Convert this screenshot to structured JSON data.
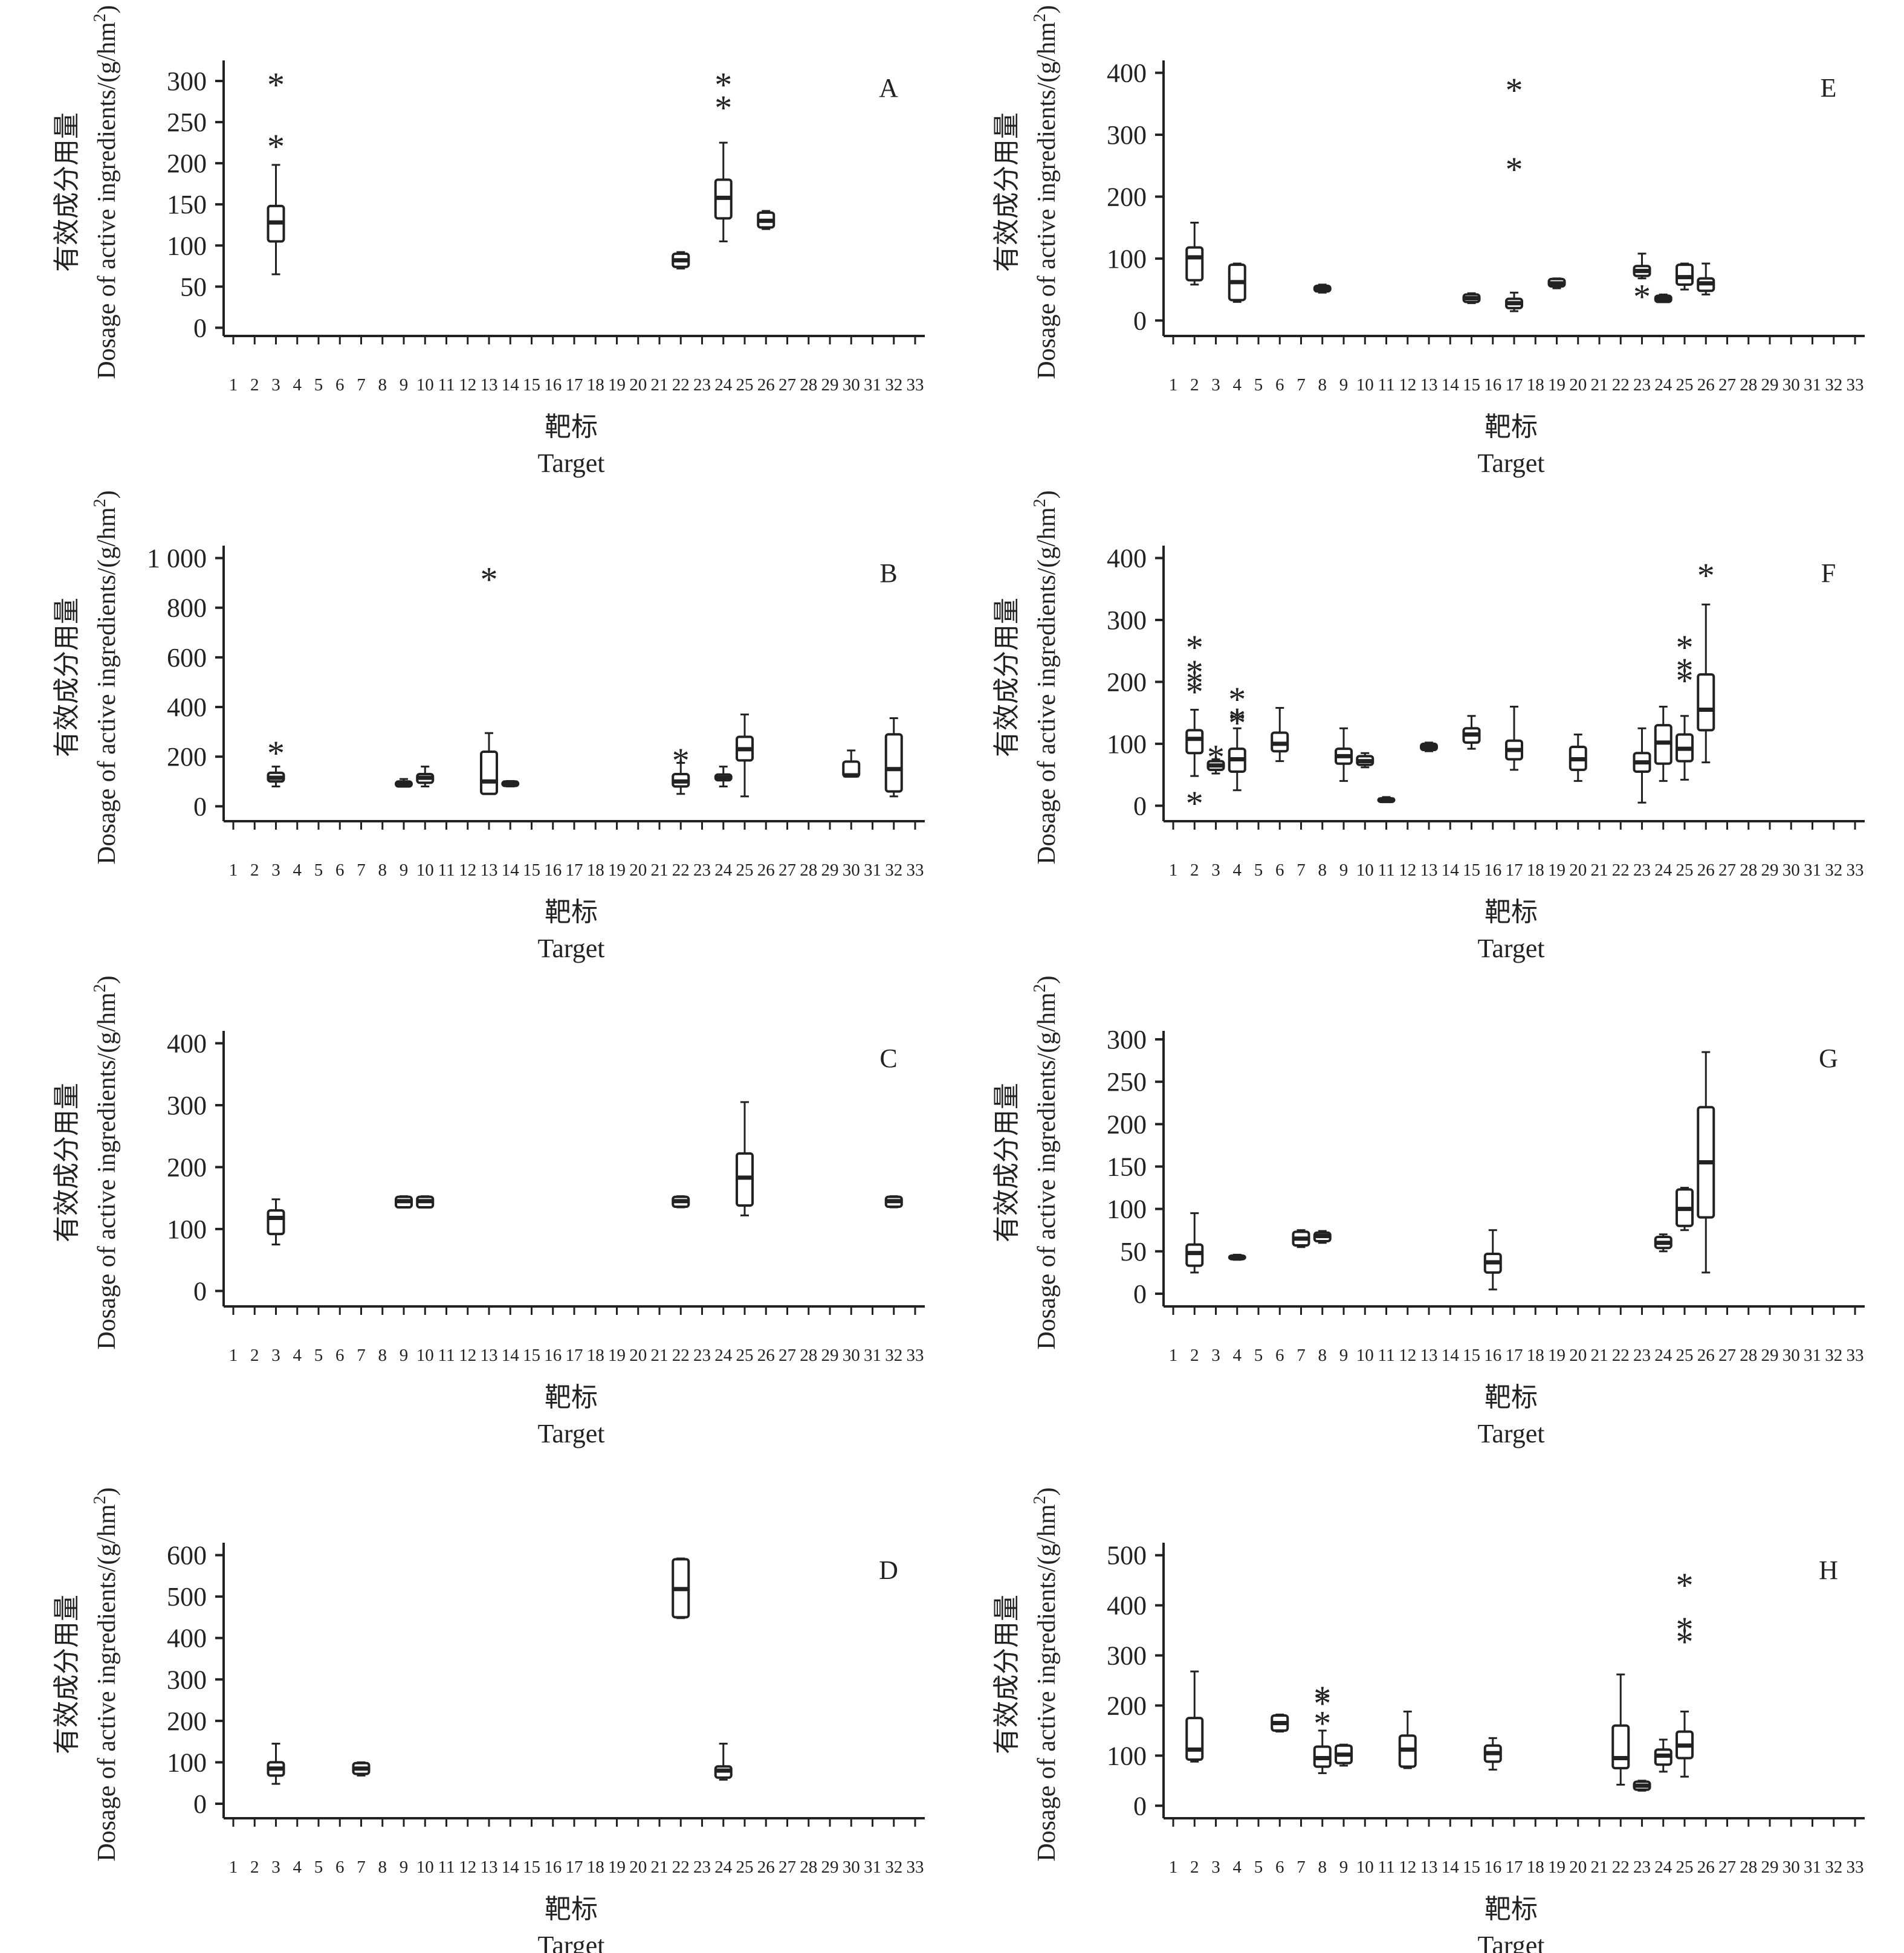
{
  "figure": {
    "colors": {
      "ink": "#222222",
      "box_fill": "#ffffff",
      "background": "#ffffff"
    },
    "shared": {
      "x_categories": [
        "1",
        "2",
        "3",
        "4",
        "5",
        "6",
        "7",
        "8",
        "9",
        "10",
        "11",
        "12",
        "13",
        "14",
        "15",
        "16",
        "17",
        "18",
        "19",
        "20",
        "21",
        "22",
        "23",
        "24",
        "25",
        "26",
        "27",
        "28",
        "29",
        "30",
        "31",
        "32",
        "33"
      ],
      "xlabel_cn": "靶标",
      "xlabel_en": "Target",
      "ylabel_cn": "有效成分用量",
      "ylabel_en": "Dosage of active ingredients/(g/hm",
      "ylabel_sup": "2",
      "ylabel_close": ")",
      "outlier_symbol": "*"
    }
  },
  "chart_data": [
    {
      "type": "boxplot",
      "panel": "A",
      "ylim": [
        -10,
        325
      ],
      "yticks": [
        0,
        50,
        100,
        150,
        200,
        250,
        300
      ],
      "boxes": [
        {
          "x": 3,
          "min": 65,
          "q1": 105,
          "median": 128,
          "q3": 148,
          "max": 198,
          "outliers": [
            225,
            300
          ]
        },
        {
          "x": 22,
          "min": 72,
          "q1": 74,
          "median": 82,
          "q3": 90,
          "max": 92,
          "outliers": []
        },
        {
          "x": 24,
          "min": 105,
          "q1": 133,
          "median": 158,
          "q3": 180,
          "max": 225,
          "outliers": [
            272,
            300
          ]
        },
        {
          "x": 26,
          "min": 120,
          "q1": 122,
          "median": 130,
          "q3": 140,
          "max": 142,
          "outliers": []
        }
      ]
    },
    {
      "type": "boxplot",
      "panel": "B",
      "ylim": [
        -60,
        1050
      ],
      "yticks": [
        0,
        200,
        400,
        600,
        800,
        1000
      ],
      "ytick_labels": [
        "0",
        "200",
        "400",
        "600",
        "800",
        "1 000"
      ],
      "boxes": [
        {
          "x": 3,
          "min": 80,
          "q1": 100,
          "median": 115,
          "q3": 135,
          "max": 160,
          "outliers": [
            230
          ]
        },
        {
          "x": 9,
          "min": 80,
          "q1": 80,
          "median": 90,
          "q3": 100,
          "max": 110,
          "outliers": []
        },
        {
          "x": 10,
          "min": 80,
          "q1": 95,
          "median": 115,
          "q3": 130,
          "max": 160,
          "outliers": []
        },
        {
          "x": 13,
          "min": 50,
          "q1": 50,
          "median": 100,
          "q3": 220,
          "max": 295,
          "outliers": [
            930
          ]
        },
        {
          "x": 14,
          "min": 80,
          "q1": 82,
          "median": 90,
          "q3": 100,
          "max": 102,
          "outliers": []
        },
        {
          "x": 22,
          "min": 50,
          "q1": 80,
          "median": 100,
          "q3": 130,
          "max": 175,
          "outliers": [
            200
          ]
        },
        {
          "x": 24,
          "min": 80,
          "q1": 105,
          "median": 115,
          "q3": 128,
          "max": 160,
          "outliers": []
        },
        {
          "x": 25,
          "min": 40,
          "q1": 185,
          "median": 230,
          "q3": 280,
          "max": 370,
          "outliers": []
        },
        {
          "x": 30,
          "min": 120,
          "q1": 120,
          "median": 125,
          "q3": 180,
          "max": 225,
          "outliers": []
        },
        {
          "x": 32,
          "min": 40,
          "q1": 60,
          "median": 150,
          "q3": 290,
          "max": 355,
          "outliers": []
        }
      ]
    },
    {
      "type": "boxplot",
      "panel": "C",
      "ylim": [
        -25,
        420
      ],
      "yticks": [
        0,
        100,
        200,
        300,
        400
      ],
      "boxes": [
        {
          "x": 3,
          "min": 75,
          "q1": 92,
          "median": 118,
          "q3": 130,
          "max": 148,
          "outliers": []
        },
        {
          "x": 9,
          "min": 135,
          "q1": 135,
          "median": 145,
          "q3": 152,
          "max": 153,
          "outliers": []
        },
        {
          "x": 10,
          "min": 135,
          "q1": 135,
          "median": 145,
          "q3": 152,
          "max": 153,
          "outliers": []
        },
        {
          "x": 22,
          "min": 135,
          "q1": 136,
          "median": 145,
          "q3": 152,
          "max": 153,
          "outliers": []
        },
        {
          "x": 25,
          "min": 122,
          "q1": 138,
          "median": 183,
          "q3": 222,
          "max": 305,
          "outliers": []
        },
        {
          "x": 32,
          "min": 135,
          "q1": 136,
          "median": 145,
          "q3": 152,
          "max": 153,
          "outliers": []
        }
      ]
    },
    {
      "type": "boxplot",
      "panel": "D",
      "ylim": [
        -35,
        630
      ],
      "yticks": [
        0,
        100,
        200,
        300,
        400,
        500,
        600
      ],
      "boxes": [
        {
          "x": 3,
          "min": 48,
          "q1": 68,
          "median": 85,
          "q3": 100,
          "max": 145,
          "outliers": []
        },
        {
          "x": 7,
          "min": 68,
          "q1": 72,
          "median": 85,
          "q3": 98,
          "max": 100,
          "outliers": []
        },
        {
          "x": 22,
          "min": 448,
          "q1": 450,
          "median": 518,
          "q3": 590,
          "max": 592,
          "outliers": []
        },
        {
          "x": 24,
          "min": 58,
          "q1": 63,
          "median": 80,
          "q3": 90,
          "max": 145,
          "outliers": []
        }
      ]
    },
    {
      "type": "boxplot",
      "panel": "E",
      "ylim": [
        -25,
        420
      ],
      "yticks": [
        0,
        100,
        200,
        300,
        400
      ],
      "boxes": [
        {
          "x": 2,
          "min": 58,
          "q1": 65,
          "median": 102,
          "q3": 118,
          "max": 158,
          "outliers": []
        },
        {
          "x": 4,
          "min": 30,
          "q1": 33,
          "median": 62,
          "q3": 90,
          "max": 92,
          "outliers": []
        },
        {
          "x": 8,
          "min": 45,
          "q1": 47,
          "median": 52,
          "q3": 56,
          "max": 58,
          "outliers": []
        },
        {
          "x": 15,
          "min": 28,
          "q1": 30,
          "median": 36,
          "q3": 42,
          "max": 44,
          "outliers": []
        },
        {
          "x": 17,
          "min": 15,
          "q1": 20,
          "median": 28,
          "q3": 35,
          "max": 45,
          "outliers": [
            250,
            378
          ]
        },
        {
          "x": 19,
          "min": 52,
          "q1": 55,
          "median": 60,
          "q3": 67,
          "max": 68,
          "outliers": []
        },
        {
          "x": 23,
          "min": 68,
          "q1": 72,
          "median": 80,
          "q3": 88,
          "max": 108,
          "outliers": [
            45
          ]
        },
        {
          "x": 24,
          "min": 30,
          "q1": 30,
          "median": 35,
          "q3": 40,
          "max": 42,
          "outliers": []
        },
        {
          "x": 25,
          "min": 50,
          "q1": 58,
          "median": 70,
          "q3": 90,
          "max": 92,
          "outliers": []
        },
        {
          "x": 26,
          "min": 42,
          "q1": 48,
          "median": 60,
          "q3": 68,
          "max": 92,
          "outliers": []
        }
      ]
    },
    {
      "type": "boxplot",
      "panel": "F",
      "ylim": [
        -25,
        420
      ],
      "yticks": [
        0,
        100,
        200,
        300,
        400
      ],
      "boxes": [
        {
          "x": 2,
          "min": 48,
          "q1": 85,
          "median": 108,
          "q3": 122,
          "max": 155,
          "outliers": [
            10,
            190,
            205,
            222,
            262
          ]
        },
        {
          "x": 3,
          "min": 52,
          "q1": 58,
          "median": 65,
          "q3": 72,
          "max": 75,
          "outliers": [
            85
          ]
        },
        {
          "x": 4,
          "min": 25,
          "q1": 55,
          "median": 75,
          "q3": 92,
          "max": 125,
          "outliers": [
            140,
            145,
            178
          ]
        },
        {
          "x": 6,
          "min": 72,
          "q1": 88,
          "median": 100,
          "q3": 118,
          "max": 158,
          "outliers": []
        },
        {
          "x": 9,
          "min": 40,
          "q1": 68,
          "median": 80,
          "q3": 92,
          "max": 125,
          "outliers": []
        },
        {
          "x": 10,
          "min": 62,
          "q1": 66,
          "median": 72,
          "q3": 80,
          "max": 85,
          "outliers": []
        },
        {
          "x": 11,
          "min": 6,
          "q1": 8,
          "median": 10,
          "q3": 12,
          "max": 14,
          "outliers": []
        },
        {
          "x": 13,
          "min": 88,
          "q1": 90,
          "median": 95,
          "q3": 100,
          "max": 102,
          "outliers": []
        },
        {
          "x": 15,
          "min": 92,
          "q1": 102,
          "median": 115,
          "q3": 125,
          "max": 145,
          "outliers": []
        },
        {
          "x": 17,
          "min": 58,
          "q1": 75,
          "median": 90,
          "q3": 105,
          "max": 160,
          "outliers": []
        },
        {
          "x": 20,
          "min": 40,
          "q1": 58,
          "median": 75,
          "q3": 95,
          "max": 115,
          "outliers": []
        },
        {
          "x": 23,
          "min": 5,
          "q1": 55,
          "median": 70,
          "q3": 85,
          "max": 125,
          "outliers": []
        },
        {
          "x": 24,
          "min": 40,
          "q1": 68,
          "median": 102,
          "q3": 130,
          "max": 160,
          "outliers": []
        },
        {
          "x": 25,
          "min": 42,
          "q1": 72,
          "median": 92,
          "q3": 115,
          "max": 145,
          "outliers": [
            208,
            225,
            262
          ]
        },
        {
          "x": 26,
          "min": 70,
          "q1": 122,
          "median": 155,
          "q3": 212,
          "max": 325,
          "outliers": [
            378
          ]
        }
      ]
    },
    {
      "type": "boxplot",
      "panel": "G",
      "ylim": [
        -15,
        310
      ],
      "yticks": [
        0,
        50,
        100,
        150,
        200,
        250,
        300
      ],
      "boxes": [
        {
          "x": 2,
          "min": 25,
          "q1": 33,
          "median": 48,
          "q3": 58,
          "max": 95,
          "outliers": []
        },
        {
          "x": 4,
          "min": 40,
          "q1": 41,
          "median": 43,
          "q3": 45,
          "max": 46,
          "outliers": []
        },
        {
          "x": 7,
          "min": 55,
          "q1": 57,
          "median": 65,
          "q3": 73,
          "max": 75,
          "outliers": []
        },
        {
          "x": 8,
          "min": 60,
          "q1": 62,
          "median": 68,
          "q3": 72,
          "max": 74,
          "outliers": []
        },
        {
          "x": 16,
          "min": 5,
          "q1": 25,
          "median": 37,
          "q3": 47,
          "max": 75,
          "outliers": []
        },
        {
          "x": 24,
          "min": 50,
          "q1": 54,
          "median": 60,
          "q3": 67,
          "max": 70,
          "outliers": []
        },
        {
          "x": 25,
          "min": 75,
          "q1": 80,
          "median": 100,
          "q3": 123,
          "max": 125,
          "outliers": []
        },
        {
          "x": 26,
          "min": 25,
          "q1": 90,
          "median": 155,
          "q3": 220,
          "max": 285,
          "outliers": []
        }
      ]
    },
    {
      "type": "boxplot",
      "panel": "H",
      "ylim": [
        -25,
        525
      ],
      "yticks": [
        0,
        100,
        200,
        300,
        400,
        500
      ],
      "boxes": [
        {
          "x": 2,
          "min": 88,
          "q1": 92,
          "median": 112,
          "q3": 175,
          "max": 268,
          "outliers": []
        },
        {
          "x": 6,
          "min": 148,
          "q1": 150,
          "median": 165,
          "q3": 180,
          "max": 182,
          "outliers": []
        },
        {
          "x": 8,
          "min": 65,
          "q1": 78,
          "median": 95,
          "q3": 118,
          "max": 150,
          "outliers": [
            172,
            212,
            222
          ]
        },
        {
          "x": 9,
          "min": 80,
          "q1": 85,
          "median": 102,
          "q3": 120,
          "max": 122,
          "outliers": []
        },
        {
          "x": 12,
          "min": 75,
          "q1": 78,
          "median": 112,
          "q3": 140,
          "max": 188,
          "outliers": []
        },
        {
          "x": 16,
          "min": 72,
          "q1": 88,
          "median": 105,
          "q3": 120,
          "max": 135,
          "outliers": []
        },
        {
          "x": 22,
          "min": 42,
          "q1": 75,
          "median": 95,
          "q3": 160,
          "max": 262,
          "outliers": []
        },
        {
          "x": 23,
          "min": 30,
          "q1": 32,
          "median": 40,
          "q3": 48,
          "max": 50,
          "outliers": []
        },
        {
          "x": 24,
          "min": 68,
          "q1": 82,
          "median": 100,
          "q3": 112,
          "max": 132,
          "outliers": []
        },
        {
          "x": 25,
          "min": 58,
          "q1": 95,
          "median": 120,
          "q3": 148,
          "max": 188,
          "outliers": [
            335,
            360,
            448
          ]
        }
      ]
    }
  ]
}
